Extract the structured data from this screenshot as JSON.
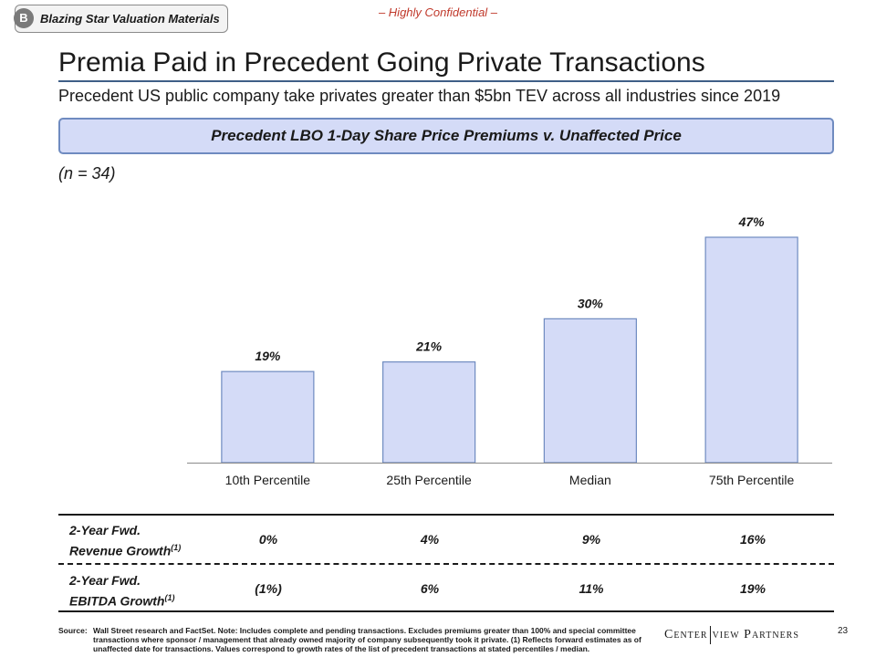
{
  "header": {
    "tag_letter": "B",
    "tag_label": "Blazing Star Valuation Materials",
    "confidential": "– Highly Confidential –",
    "title": "Premia Paid in Precedent Going Private Transactions",
    "subtitle": "Precedent US public company take privates greater than $5bn TEV across all industries since 2019",
    "banner": "Precedent LBO 1-Day Share Price Premiums v. Unaffected Price",
    "n_label": "(n = 34)"
  },
  "chart_data": {
    "type": "bar",
    "categories": [
      "10th Percentile",
      "25th Percentile",
      "Median",
      "75th Percentile"
    ],
    "values": [
      19,
      21,
      30,
      47
    ],
    "data_labels": [
      "19%",
      "21%",
      "30%",
      "47%"
    ],
    "ylim": [
      0,
      50
    ],
    "bar_color": "#d4dbf7",
    "bar_border": "#6f8bc0",
    "grid": false
  },
  "growth_table": {
    "rows": [
      {
        "label_line1": "2-Year Fwd.",
        "label_line2": "Revenue Growth",
        "footnote": "(1)",
        "values": [
          "0%",
          "4%",
          "9%",
          "16%"
        ]
      },
      {
        "label_line1": "2-Year Fwd.",
        "label_line2": "EBITDA Growth",
        "footnote": "(1)",
        "values": [
          "(1%)",
          "6%",
          "11%",
          "19%"
        ]
      }
    ]
  },
  "footer": {
    "source_key": "Source:",
    "source_text": "Wall Street research and FactSet. Note: Includes complete and pending transactions. Excludes premiums greater than 100% and special committee transactions where sponsor / management that already owned majority of company subsequently took it private. (1) Reflects forward estimates as of unaffected date for transactions. Values correspond to growth rates of the list of precedent transactions at stated percentiles / median.",
    "logo_left": "Center",
    "logo_right": "view Partners",
    "page_number": "23"
  }
}
